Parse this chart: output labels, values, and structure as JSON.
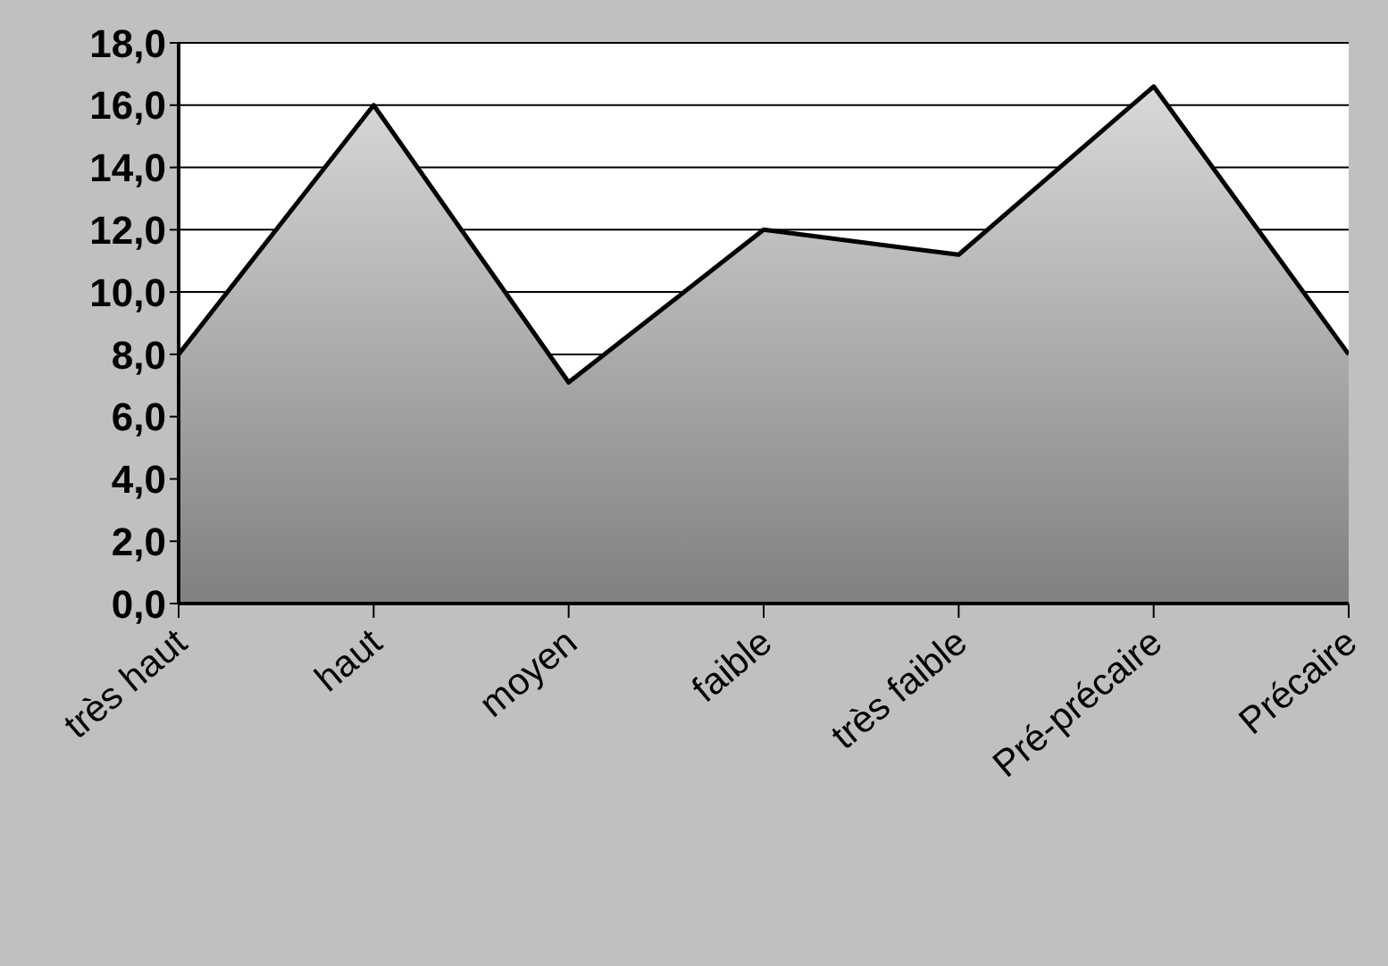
{
  "chart_data": {
    "type": "area",
    "categories": [
      "très haut",
      "haut",
      "moyen",
      "faible",
      "très faible",
      "Pré-précaire",
      "Précaire"
    ],
    "series": [
      {
        "color": "#ababab",
        "values": [
          8.0,
          16.0,
          7.1,
          12.0,
          11.2,
          16.6,
          8.0
        ]
      }
    ],
    "ylim": [
      0,
      18
    ],
    "yticks": [
      {
        "value": 0,
        "label": "0,0"
      },
      {
        "value": 2,
        "label": "2,0"
      },
      {
        "value": 4,
        "label": "4,0"
      },
      {
        "value": 6,
        "label": "6,0"
      },
      {
        "value": 8,
        "label": "8,0"
      },
      {
        "value": 10,
        "label": "10,0"
      },
      {
        "value": 12,
        "label": "12,0"
      },
      {
        "value": 14,
        "label": "14,0"
      },
      {
        "value": 16,
        "label": "16,0"
      },
      {
        "value": 18,
        "label": "18,0"
      }
    ],
    "grid": "y",
    "legend": false
  }
}
